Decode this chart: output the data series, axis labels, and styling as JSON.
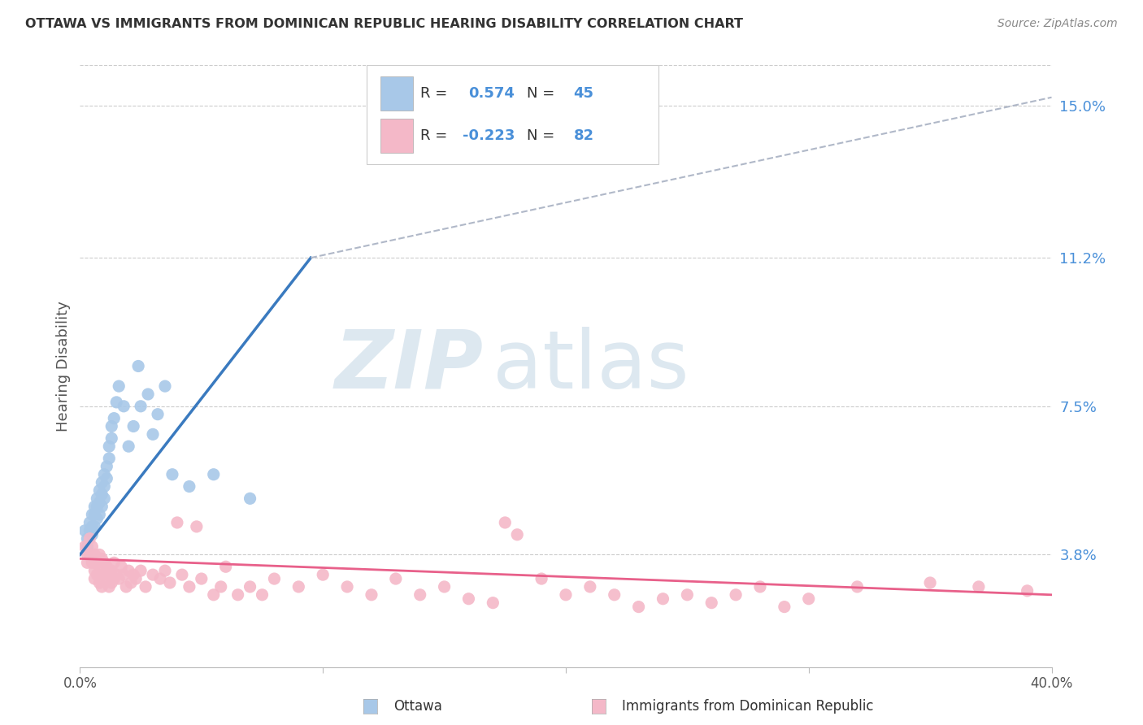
{
  "title": "OTTAWA VS IMMIGRANTS FROM DOMINICAN REPUBLIC HEARING DISABILITY CORRELATION CHART",
  "source": "Source: ZipAtlas.com",
  "ylabel": "Hearing Disability",
  "ytick_labels": [
    "3.8%",
    "7.5%",
    "11.2%",
    "15.0%"
  ],
  "ytick_values": [
    0.038,
    0.075,
    0.112,
    0.15
  ],
  "xlim": [
    0.0,
    0.4
  ],
  "ylim": [
    0.01,
    0.16
  ],
  "color_blue": "#a8c8e8",
  "color_pink": "#f4b8c8",
  "color_blue_line": "#3a7abf",
  "color_pink_line": "#e8608a",
  "color_dashed_line": "#b0b8c8",
  "background_color": "#ffffff",
  "grid_color": "#cccccc",
  "title_color": "#333333",
  "blue_scatter": [
    [
      0.002,
      0.044
    ],
    [
      0.003,
      0.042
    ],
    [
      0.003,
      0.04
    ],
    [
      0.004,
      0.046
    ],
    [
      0.004,
      0.044
    ],
    [
      0.005,
      0.048
    ],
    [
      0.005,
      0.045
    ],
    [
      0.005,
      0.043
    ],
    [
      0.006,
      0.05
    ],
    [
      0.006,
      0.048
    ],
    [
      0.006,
      0.045
    ],
    [
      0.007,
      0.052
    ],
    [
      0.007,
      0.05
    ],
    [
      0.007,
      0.047
    ],
    [
      0.008,
      0.054
    ],
    [
      0.008,
      0.051
    ],
    [
      0.008,
      0.048
    ],
    [
      0.009,
      0.056
    ],
    [
      0.009,
      0.053
    ],
    [
      0.009,
      0.05
    ],
    [
      0.01,
      0.058
    ],
    [
      0.01,
      0.055
    ],
    [
      0.01,
      0.052
    ],
    [
      0.011,
      0.06
    ],
    [
      0.011,
      0.057
    ],
    [
      0.012,
      0.065
    ],
    [
      0.012,
      0.062
    ],
    [
      0.013,
      0.07
    ],
    [
      0.013,
      0.067
    ],
    [
      0.014,
      0.072
    ],
    [
      0.015,
      0.076
    ],
    [
      0.016,
      0.08
    ],
    [
      0.018,
      0.075
    ],
    [
      0.02,
      0.065
    ],
    [
      0.022,
      0.07
    ],
    [
      0.024,
      0.085
    ],
    [
      0.025,
      0.075
    ],
    [
      0.028,
      0.078
    ],
    [
      0.03,
      0.068
    ],
    [
      0.032,
      0.073
    ],
    [
      0.035,
      0.08
    ],
    [
      0.038,
      0.058
    ],
    [
      0.045,
      0.055
    ],
    [
      0.055,
      0.058
    ],
    [
      0.07,
      0.052
    ]
  ],
  "pink_scatter": [
    [
      0.002,
      0.04
    ],
    [
      0.003,
      0.038
    ],
    [
      0.003,
      0.036
    ],
    [
      0.004,
      0.042
    ],
    [
      0.004,
      0.038
    ],
    [
      0.005,
      0.04
    ],
    [
      0.005,
      0.036
    ],
    [
      0.006,
      0.038
    ],
    [
      0.006,
      0.034
    ],
    [
      0.006,
      0.032
    ],
    [
      0.007,
      0.036
    ],
    [
      0.007,
      0.033
    ],
    [
      0.008,
      0.038
    ],
    [
      0.008,
      0.035
    ],
    [
      0.008,
      0.031
    ],
    [
      0.009,
      0.037
    ],
    [
      0.009,
      0.033
    ],
    [
      0.009,
      0.03
    ],
    [
      0.01,
      0.036
    ],
    [
      0.01,
      0.033
    ],
    [
      0.011,
      0.035
    ],
    [
      0.011,
      0.032
    ],
    [
      0.012,
      0.034
    ],
    [
      0.012,
      0.03
    ],
    [
      0.013,
      0.034
    ],
    [
      0.013,
      0.031
    ],
    [
      0.014,
      0.036
    ],
    [
      0.014,
      0.032
    ],
    [
      0.015,
      0.033
    ],
    [
      0.016,
      0.032
    ],
    [
      0.017,
      0.035
    ],
    [
      0.018,
      0.033
    ],
    [
      0.019,
      0.03
    ],
    [
      0.02,
      0.034
    ],
    [
      0.021,
      0.031
    ],
    [
      0.022,
      0.033
    ],
    [
      0.023,
      0.032
    ],
    [
      0.025,
      0.034
    ],
    [
      0.027,
      0.03
    ],
    [
      0.03,
      0.033
    ],
    [
      0.033,
      0.032
    ],
    [
      0.035,
      0.034
    ],
    [
      0.037,
      0.031
    ],
    [
      0.04,
      0.046
    ],
    [
      0.042,
      0.033
    ],
    [
      0.045,
      0.03
    ],
    [
      0.048,
      0.045
    ],
    [
      0.05,
      0.032
    ],
    [
      0.055,
      0.028
    ],
    [
      0.058,
      0.03
    ],
    [
      0.06,
      0.035
    ],
    [
      0.065,
      0.028
    ],
    [
      0.07,
      0.03
    ],
    [
      0.075,
      0.028
    ],
    [
      0.08,
      0.032
    ],
    [
      0.09,
      0.03
    ],
    [
      0.1,
      0.033
    ],
    [
      0.11,
      0.03
    ],
    [
      0.12,
      0.028
    ],
    [
      0.13,
      0.032
    ],
    [
      0.14,
      0.028
    ],
    [
      0.15,
      0.03
    ],
    [
      0.16,
      0.027
    ],
    [
      0.17,
      0.026
    ],
    [
      0.175,
      0.046
    ],
    [
      0.18,
      0.043
    ],
    [
      0.19,
      0.032
    ],
    [
      0.2,
      0.028
    ],
    [
      0.21,
      0.03
    ],
    [
      0.22,
      0.028
    ],
    [
      0.23,
      0.025
    ],
    [
      0.24,
      0.027
    ],
    [
      0.25,
      0.028
    ],
    [
      0.26,
      0.026
    ],
    [
      0.27,
      0.028
    ],
    [
      0.28,
      0.03
    ],
    [
      0.29,
      0.025
    ],
    [
      0.3,
      0.027
    ],
    [
      0.32,
      0.03
    ],
    [
      0.35,
      0.031
    ],
    [
      0.37,
      0.03
    ],
    [
      0.39,
      0.029
    ]
  ],
  "blue_line_solid": [
    [
      0.0,
      0.038
    ],
    [
      0.095,
      0.112
    ]
  ],
  "blue_line_dashed": [
    [
      0.095,
      0.112
    ],
    [
      0.4,
      0.152
    ]
  ],
  "pink_line": [
    [
      0.0,
      0.037
    ],
    [
      0.4,
      0.028
    ]
  ]
}
